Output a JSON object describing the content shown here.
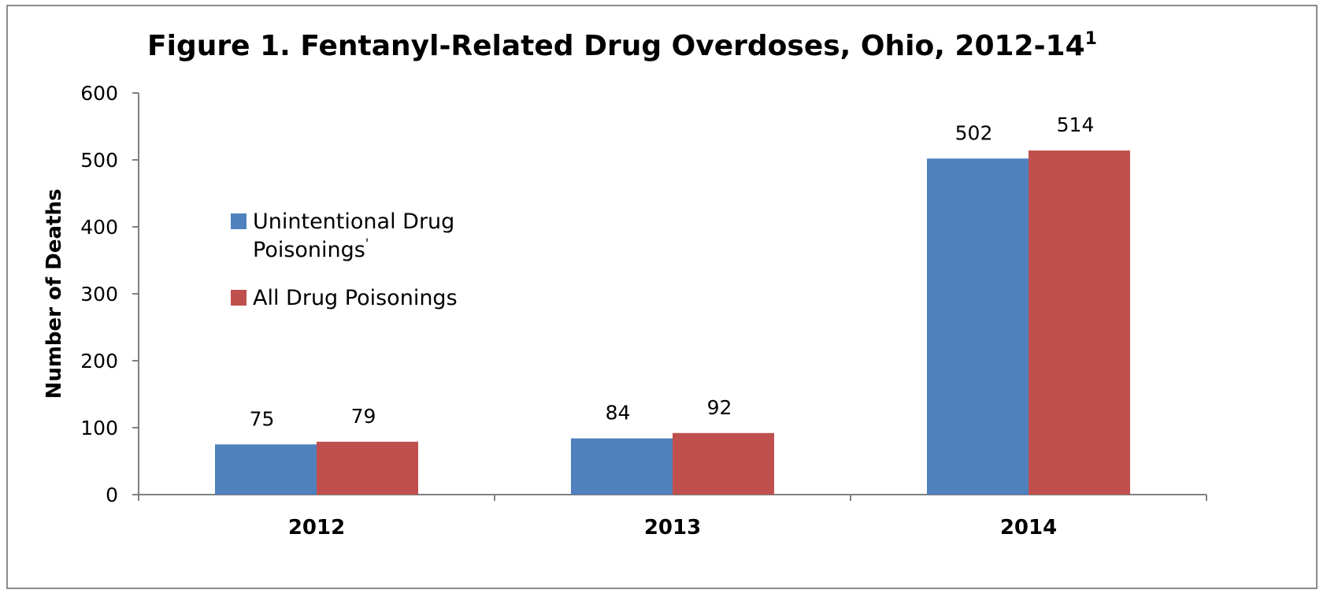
{
  "chart_data": {
    "type": "bar",
    "title": "Figure 1. Fentanyl-Related Drug Overdoses, Ohio, 2012-14",
    "title_superscript": "1",
    "xlabel": "",
    "ylabel": "Number of Deaths",
    "categories": [
      "2012",
      "2013",
      "2014"
    ],
    "series": [
      {
        "name": "Unintentional Drug Poisonings",
        "legend_lines": [
          "Unintentional Drug",
          "Poisonings"
        ],
        "legend_mark": "'",
        "values": [
          75,
          84,
          502
        ],
        "color": "#4f81bd"
      },
      {
        "name": "All Drug Poisonings",
        "legend_lines": [
          "All Drug Poisonings"
        ],
        "values": [
          79,
          92,
          514
        ],
        "color": "#c0504d"
      }
    ],
    "ylim": [
      0,
      600
    ],
    "yticks": [
      0,
      100,
      200,
      300,
      400,
      500,
      600
    ],
    "grid": false,
    "legend_position": "left",
    "data_labels": true
  }
}
